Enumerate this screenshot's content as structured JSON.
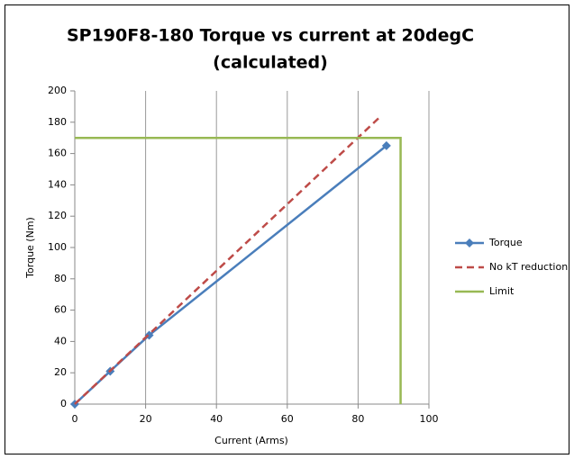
{
  "chart_data": {
    "type": "line",
    "title": [
      "SP190F8-180 Torque vs current at 20degC",
      "(calculated)"
    ],
    "x_label": "Current (Arms)",
    "y_label": "Torque (Nm)",
    "xlim": [
      0,
      100
    ],
    "xticks": [
      0,
      20,
      40,
      60,
      80,
      100
    ],
    "ylim": [
      0,
      200
    ],
    "yticks": [
      0,
      20,
      40,
      60,
      80,
      100,
      120,
      140,
      160,
      180,
      200
    ],
    "grid": "x",
    "legend": "right",
    "series": [
      {
        "name": "Torque",
        "color": "#4a7ebb",
        "marker": "diamond",
        "dash": false,
        "x": [
          0,
          10,
          21,
          88
        ],
        "values": [
          0,
          21,
          44,
          165
        ]
      },
      {
        "name": "No kT reduction",
        "color": "#be4b48",
        "marker": "none",
        "dash": true,
        "x": [
          0,
          86
        ],
        "values": [
          0,
          183
        ]
      },
      {
        "name": "Limit",
        "color": "#98b954",
        "marker": "none",
        "dash": false,
        "x": [
          0,
          92,
          92
        ],
        "values": [
          170,
          170,
          0
        ]
      }
    ]
  }
}
